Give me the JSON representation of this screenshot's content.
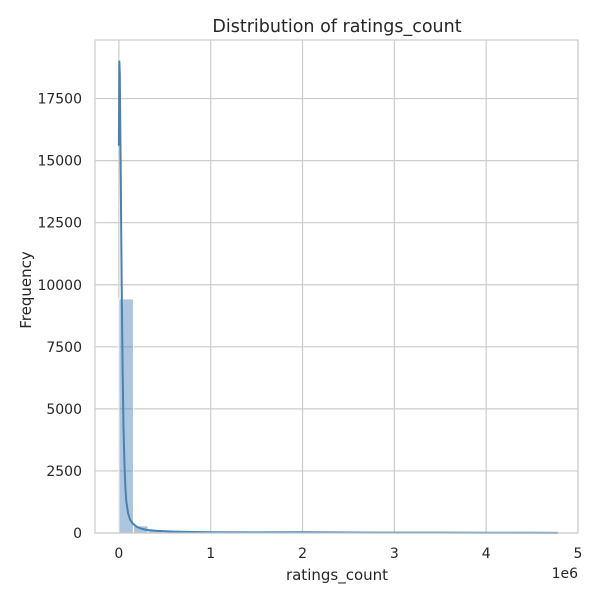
{
  "chart_data": {
    "type": "bar",
    "title": "Distribution of ratings_count",
    "xlabel": "ratings_count",
    "ylabel": "Frequency",
    "x_offset_label": "1e6",
    "xlim": [
      -260000,
      5000000
    ],
    "ylim": [
      0,
      19860
    ],
    "x_ticks": [
      0,
      1000000,
      2000000,
      3000000,
      4000000,
      5000000
    ],
    "x_tick_labels": [
      "0",
      "1",
      "2",
      "3",
      "4",
      "5"
    ],
    "y_ticks": [
      0,
      2500,
      5000,
      7500,
      10000,
      12500,
      15000,
      17500
    ],
    "y_tick_labels": [
      "0",
      "2500",
      "5000",
      "7500",
      "10000",
      "12500",
      "15000",
      "17500"
    ],
    "grid": true,
    "bar_color": "#4682b4",
    "bar_alpha": 0.45,
    "kde_color": "#4682b4",
    "bins": {
      "start": 0,
      "width": 159000,
      "counts": [
        9430,
        290,
        105,
        55,
        30,
        22,
        15,
        10,
        10,
        8,
        12,
        10,
        8,
        5,
        5,
        4,
        3,
        3,
        2,
        2,
        2,
        3,
        1,
        1,
        1,
        2,
        1,
        0,
        1,
        1
      ]
    },
    "kde": {
      "x": [
        0,
        5000,
        10000,
        20000,
        30000,
        40000,
        50000,
        60000,
        70000,
        80000,
        100000,
        120000,
        150000,
        200000,
        250000,
        300000,
        400000,
        500000,
        600000,
        800000,
        1000000,
        1500000,
        2000000,
        2500000,
        3000000,
        3500000,
        4000000,
        4500000,
        4780000
      ],
      "y": [
        15600,
        19000,
        18500,
        14500,
        10200,
        6800,
        4300,
        2900,
        1900,
        1300,
        800,
        560,
        380,
        240,
        170,
        125,
        90,
        70,
        55,
        40,
        30,
        25,
        28,
        18,
        16,
        14,
        12,
        8,
        5
      ]
    }
  }
}
